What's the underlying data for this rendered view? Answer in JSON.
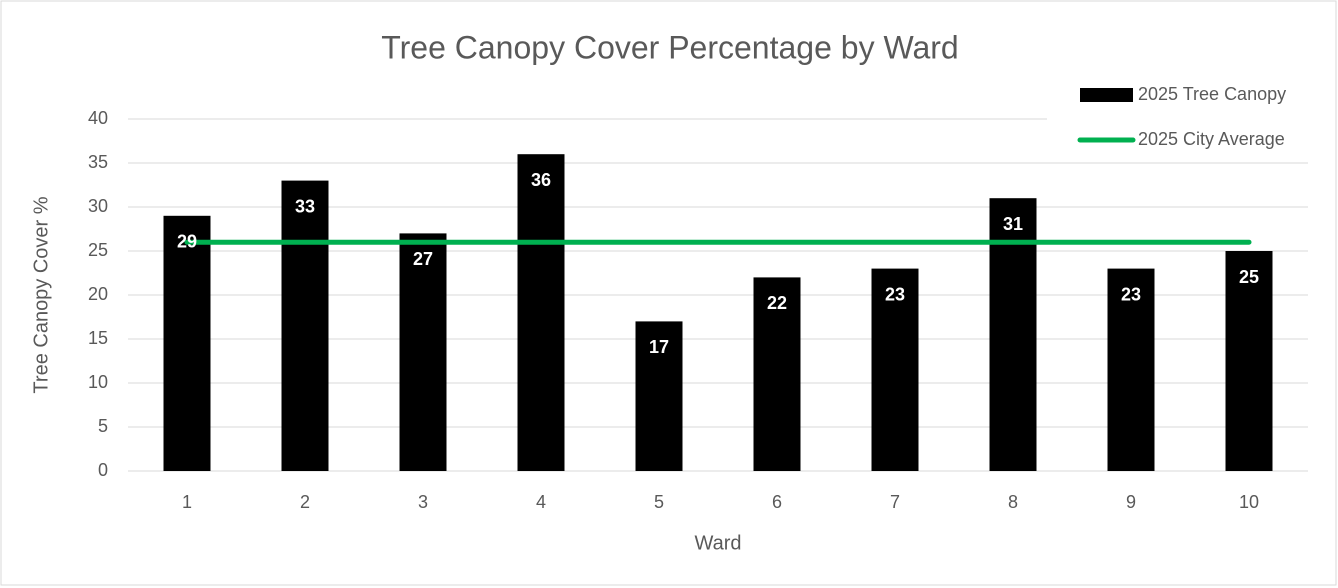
{
  "chart_data": {
    "type": "bar",
    "title": "Tree Canopy Cover Percentage by Ward",
    "x_label": "Ward",
    "y_label": "Tree Canopy Cover %",
    "categories": [
      "1",
      "2",
      "3",
      "4",
      "5",
      "6",
      "7",
      "8",
      "9",
      "10"
    ],
    "series": [
      {
        "name": "2025 Tree Canopy",
        "type": "bar",
        "color": "#000000",
        "values": [
          29,
          33,
          27,
          36,
          17,
          22,
          23,
          31,
          23,
          25
        ]
      },
      {
        "name": "2025 City Average",
        "type": "line",
        "color": "#00b050",
        "values": [
          26,
          26,
          26,
          26,
          26,
          26,
          26,
          26,
          26,
          26
        ]
      }
    ],
    "ylim": [
      0,
      40
    ],
    "yticks": [
      0,
      5,
      10,
      15,
      20,
      25,
      30,
      35,
      40
    ],
    "grid": true,
    "legend": "top-right"
  }
}
